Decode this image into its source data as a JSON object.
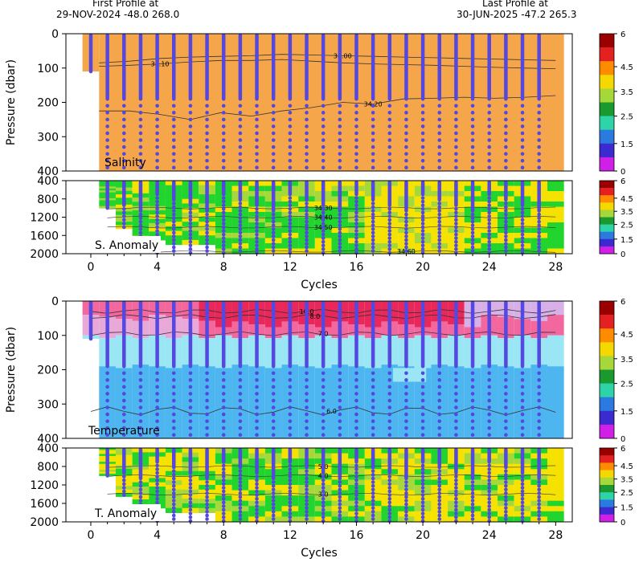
{
  "header": {
    "first_title": "First Profile at",
    "first_value": "29-NOV-2024   -48.0  268.0",
    "last_title": "Last Profile at",
    "last_value": "30-JUN-2025   -47.2  265.3"
  },
  "colors": {
    "salinity_fill": "#f6a64a",
    "marker": "#5448e0",
    "temp_warm1": "#e8285a",
    "temp_warm2": "#f2689e",
    "temp_warm3": "#e8a8d8",
    "temp_mid": "#d8b0e8",
    "temp_cool1": "#9ae6f5",
    "temp_cool2": "#4db6f0",
    "anom_yellow": "#f5e200",
    "anom_green": "#22d42e",
    "anom_lime": "#a6d83a"
  },
  "colorbar": {
    "ticks": [
      "6",
      "4.5",
      "3.5",
      "2.5",
      "1.5",
      "0"
    ],
    "colors": [
      "#9a0000",
      "#e42020",
      "#ff8c00",
      "#f5d800",
      "#a6d83a",
      "#1a9a2e",
      "#2dd4a8",
      "#2a7ae0",
      "#3a2ad0",
      "#d020e8"
    ]
  },
  "chart_data": [
    {
      "type": "heatmap",
      "panel": "salinity",
      "title": "Salinity",
      "ylabel": "Pressure (dbar)",
      "xlim": [
        -1.5,
        29
      ],
      "ylim": [
        400,
        0
      ],
      "yticks": [
        "0",
        "100",
        "200",
        "300",
        "400"
      ],
      "contours": [
        {
          "label": "34.10",
          "depths": [
            95,
            92,
            88,
            82,
            78,
            78,
            75,
            80,
            85,
            88,
            90,
            92,
            95,
            98,
            100,
            102
          ]
        },
        {
          "label": "34.00",
          "depths": [
            85,
            80,
            72,
            68,
            66,
            64,
            60,
            62,
            64,
            66,
            68,
            70,
            72,
            74,
            76,
            78
          ]
        },
        {
          "label": "34.20",
          "depths": [
            225,
            225,
            235,
            250,
            230,
            240,
            225,
            215,
            200,
            205,
            190,
            188,
            185,
            188,
            185,
            180
          ]
        }
      ]
    },
    {
      "type": "heatmap",
      "panel": "salinity-anomaly",
      "title": "S. Anomaly",
      "xlim": [
        -1.5,
        29
      ],
      "ylim": [
        2000,
        400
      ],
      "xticks": [
        "0",
        "4",
        "8",
        "12",
        "16",
        "20",
        "24",
        "28"
      ],
      "yticks": [
        "400",
        "800",
        "1200",
        "1600",
        "2000"
      ],
      "xlabel": "Cycles",
      "contour_labels": [
        "34.30",
        "34.40",
        "34.50",
        "34.60"
      ]
    },
    {
      "type": "heatmap",
      "panel": "temperature",
      "title": "Temperature",
      "ylabel": "Pressure (dbar)",
      "xlim": [
        -1.5,
        29
      ],
      "ylim": [
        400,
        0
      ],
      "yticks": [
        "0",
        "100",
        "200",
        "300",
        "400"
      ],
      "contour_labels": [
        "10.0",
        "8.0",
        "7.0",
        "6.0"
      ]
    },
    {
      "type": "heatmap",
      "panel": "temperature-anomaly",
      "title": "T. Anomaly",
      "xlim": [
        -1.5,
        29
      ],
      "ylim": [
        2000,
        400
      ],
      "xticks": [
        "0",
        "4",
        "8",
        "12",
        "16",
        "20",
        "24",
        "28"
      ],
      "yticks": [
        "400",
        "800",
        "1200",
        "1600",
        "2000"
      ],
      "xlabel": "Cycles",
      "contour_labels": [
        "5.0",
        "4.0",
        "3.0"
      ]
    }
  ],
  "profiles": {
    "cycles": [
      0,
      1,
      2,
      3,
      4,
      5,
      6,
      7,
      8,
      9,
      10,
      11,
      12,
      13,
      14,
      15,
      16,
      17,
      18,
      19,
      20,
      21,
      22,
      23,
      24,
      25,
      26,
      27
    ]
  }
}
